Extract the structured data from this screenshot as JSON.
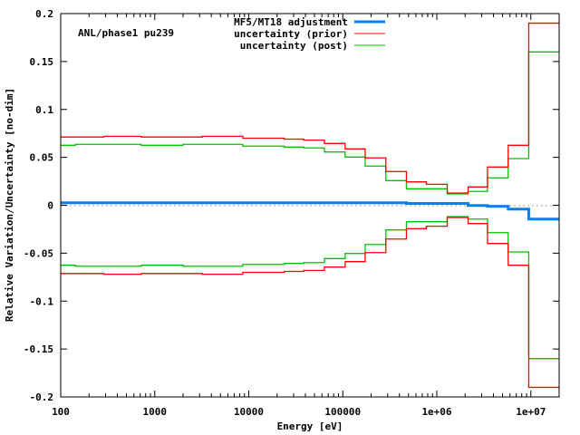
{
  "chart_data": {
    "type": "line",
    "title": "ANL/phase1 pu239",
    "xlabel": "Energy [eV]",
    "ylabel": "Relative Variation/Uncertainty [no-dim]",
    "xscale": "log",
    "xlim": [
      100,
      20000000
    ],
    "ylim": [
      -0.2,
      0.2
    ],
    "x_ticks": [
      {
        "value": 100,
        "label": "100"
      },
      {
        "value": 1000,
        "label": "1000"
      },
      {
        "value": 10000,
        "label": "10000"
      },
      {
        "value": 100000,
        "label": "100000"
      },
      {
        "value": 1000000,
        "label": "1e+06"
      },
      {
        "value": 10000000,
        "label": "1e+07"
      }
    ],
    "y_ticks": [
      {
        "value": 0.2,
        "label": "0.2"
      },
      {
        "value": 0.15,
        "label": "0.15"
      },
      {
        "value": 0.1,
        "label": "0.1"
      },
      {
        "value": 0.05,
        "label": "0.05"
      },
      {
        "value": 0,
        "label": "0"
      },
      {
        "value": -0.05,
        "label": "-0.05"
      },
      {
        "value": -0.1,
        "label": "-0.1"
      },
      {
        "value": -0.15,
        "label": "-0.15"
      },
      {
        "value": -0.2,
        "label": "-0.2"
      }
    ],
    "legend_position": "top-center",
    "bin_edges": [
      100,
      143,
      288,
      716,
      2000,
      3200,
      8630,
      23800,
      38400,
      63700,
      106000,
      173000,
      287000,
      475000,
      773000,
      1290000,
      2150000,
      3460000,
      5740000,
      9500000,
      20000000
    ],
    "series": [
      {
        "name": "MF5/MT18 adjustment",
        "color": "#0a7ff0",
        "symmetric": false,
        "values": [
          0.0026,
          0.0026,
          0.0026,
          0.0026,
          0.0026,
          0.0026,
          0.0026,
          0.0026,
          0.0026,
          0.0026,
          0.0026,
          0.0026,
          0.0026,
          0.0019,
          0.0019,
          0.0019,
          -0.0002,
          -0.0011,
          -0.004,
          -0.0144
        ]
      },
      {
        "name": "uncertainty (prior)",
        "color": "#ff0000",
        "symmetric": true,
        "values": [
          0.0712,
          0.0712,
          0.072,
          0.0712,
          0.0712,
          0.072,
          0.07,
          0.069,
          0.068,
          0.0645,
          0.0588,
          0.0494,
          0.0352,
          0.0244,
          0.0219,
          0.0128,
          0.0191,
          0.0399,
          0.0626,
          0.19
        ]
      },
      {
        "name": "uncertainty (post)",
        "color": "#00c000",
        "symmetric": true,
        "values": [
          0.0626,
          0.0636,
          0.0636,
          0.0626,
          0.0636,
          0.0636,
          0.0617,
          0.0607,
          0.0598,
          0.0556,
          0.0503,
          0.0409,
          0.0257,
          0.0172,
          0.0172,
          0.0118,
          0.0144,
          0.0286,
          0.0487,
          0.16
        ]
      }
    ]
  }
}
